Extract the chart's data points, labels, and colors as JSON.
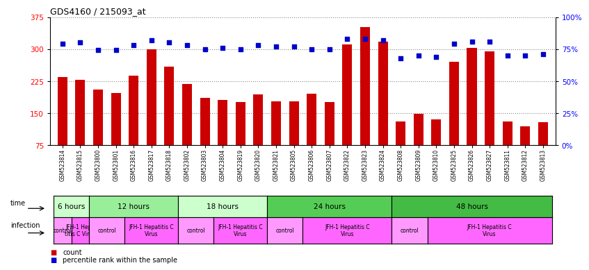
{
  "title": "GDS4160 / 215093_at",
  "samples": [
    "GSM523814",
    "GSM523815",
    "GSM523800",
    "GSM523801",
    "GSM523816",
    "GSM523817",
    "GSM523818",
    "GSM523802",
    "GSM523803",
    "GSM523804",
    "GSM523819",
    "GSM523820",
    "GSM523821",
    "GSM523805",
    "GSM523806",
    "GSM523807",
    "GSM523822",
    "GSM523823",
    "GSM523824",
    "GSM523808",
    "GSM523809",
    "GSM523810",
    "GSM523825",
    "GSM523826",
    "GSM523827",
    "GSM523811",
    "GSM523812",
    "GSM523813"
  ],
  "counts": [
    235,
    228,
    205,
    197,
    237,
    300,
    258,
    218,
    185,
    180,
    175,
    193,
    178,
    178,
    195,
    175,
    310,
    352,
    318,
    130,
    148,
    135,
    270,
    302,
    295,
    130,
    118,
    128
  ],
  "percentiles": [
    79,
    80,
    74,
    74,
    78,
    82,
    80,
    78,
    75,
    76,
    75,
    78,
    77,
    77,
    75,
    75,
    83,
    83,
    82,
    68,
    70,
    69,
    79,
    81,
    81,
    70,
    70,
    71
  ],
  "ylim_left": [
    75,
    375
  ],
  "ylim_right": [
    0,
    100
  ],
  "yticks_left": [
    75,
    150,
    225,
    300,
    375
  ],
  "yticks_right": [
    0,
    25,
    50,
    75,
    100
  ],
  "bar_color": "#cc0000",
  "dot_color": "#0000cc",
  "grid_color": "#888888",
  "time_groups": [
    {
      "label": "6 hours",
      "start": 0,
      "end": 2,
      "color": "#ccffcc"
    },
    {
      "label": "12 hours",
      "start": 2,
      "end": 7,
      "color": "#99ee99"
    },
    {
      "label": "18 hours",
      "start": 7,
      "end": 12,
      "color": "#ccffcc"
    },
    {
      "label": "24 hours",
      "start": 12,
      "end": 19,
      "color": "#55cc55"
    },
    {
      "label": "48 hours",
      "start": 19,
      "end": 28,
      "color": "#44bb44"
    }
  ],
  "infection_groups": [
    {
      "label": "control",
      "start": 0,
      "end": 1,
      "color": "#ff99ff"
    },
    {
      "label": "JFH-1 Hepa\ntitis C Virus",
      "start": 1,
      "end": 2,
      "color": "#ff66ff"
    },
    {
      "label": "control",
      "start": 2,
      "end": 4,
      "color": "#ff99ff"
    },
    {
      "label": "JFH-1 Hepatitis C\nVirus",
      "start": 4,
      "end": 7,
      "color": "#ff66ff"
    },
    {
      "label": "control",
      "start": 7,
      "end": 9,
      "color": "#ff99ff"
    },
    {
      "label": "JFH-1 Hepatitis C\nVirus",
      "start": 9,
      "end": 12,
      "color": "#ff66ff"
    },
    {
      "label": "control",
      "start": 12,
      "end": 14,
      "color": "#ff99ff"
    },
    {
      "label": "JFH-1 Hepatitis C\nVirus",
      "start": 14,
      "end": 19,
      "color": "#ff66ff"
    },
    {
      "label": "control",
      "start": 19,
      "end": 21,
      "color": "#ff99ff"
    },
    {
      "label": "JFH-1 Hepatitis C\nVirus",
      "start": 21,
      "end": 28,
      "color": "#ff66ff"
    }
  ]
}
